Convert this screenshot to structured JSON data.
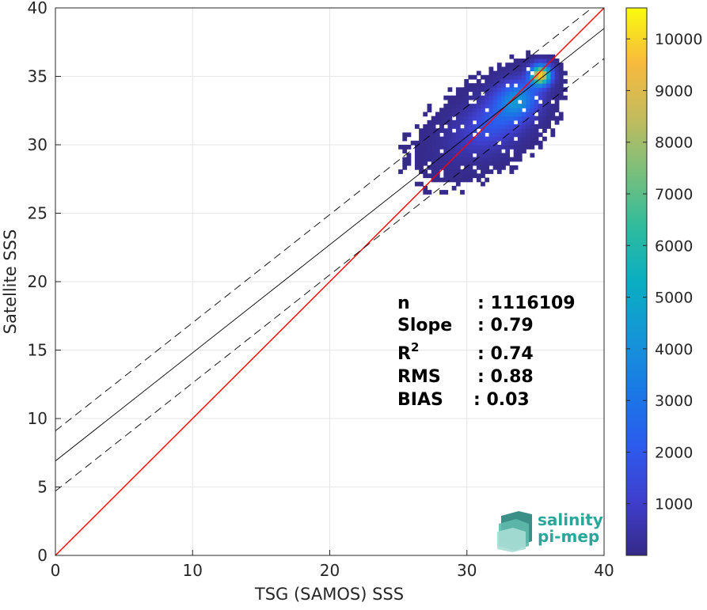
{
  "chart_data": {
    "type": "heatmap",
    "xlabel": "TSG (SAMOS) SSS",
    "ylabel": "Satellite SSS",
    "xlim": [
      0,
      40
    ],
    "ylim": [
      0,
      40
    ],
    "xticks": [
      0,
      10,
      20,
      30,
      40
    ],
    "yticks": [
      0,
      5,
      10,
      15,
      20,
      25,
      30,
      35,
      40
    ],
    "grid": true,
    "colorbar": {
      "colormap": "parula",
      "range": [
        0,
        10600
      ],
      "ticks": [
        1000,
        2000,
        3000,
        4000,
        5000,
        6000,
        7000,
        8000,
        9000,
        10000
      ],
      "position": "right"
    },
    "lines": [
      {
        "role": "identity",
        "color": "#ff0000",
        "style": "solid",
        "points": [
          [
            0,
            0
          ],
          [
            40,
            40
          ]
        ]
      },
      {
        "role": "regression",
        "color": "#000000",
        "style": "solid",
        "points": [
          [
            0,
            6.9
          ],
          [
            40,
            38.5
          ]
        ]
      },
      {
        "role": "regression-upper",
        "color": "#000000",
        "style": "dashed",
        "points": [
          [
            0,
            9.1
          ],
          [
            40,
            40.7
          ]
        ]
      },
      {
        "role": "regression-lower",
        "color": "#000000",
        "style": "dashed",
        "points": [
          [
            0,
            4.7
          ],
          [
            40,
            36.3
          ]
        ]
      }
    ],
    "density_clusters": [
      {
        "x": 35.2,
        "y": 35.0,
        "sx": 0.5,
        "sy": 0.5,
        "peak": 10500
      },
      {
        "x": 33.5,
        "y": 33.2,
        "sx": 1.1,
        "sy": 1.0,
        "peak": 3800
      },
      {
        "x": 32.0,
        "y": 31.5,
        "sx": 1.6,
        "sy": 1.4,
        "peak": 1600
      },
      {
        "x": 30.0,
        "y": 30.5,
        "sx": 2.2,
        "sy": 1.8,
        "peak": 450
      }
    ],
    "stats": [
      {
        "label": "n",
        "value": ": 1116109"
      },
      {
        "label": "Slope",
        "value": ": 0.79"
      },
      {
        "label": "R",
        "sup": "2",
        "value": ": 0.74"
      },
      {
        "label": "RMS",
        "value": ": 0.88"
      },
      {
        "label": "BIAS",
        "value": ": 0.03"
      }
    ]
  },
  "logo": {
    "line1": "salinity",
    "line2": "pi-mep"
  }
}
